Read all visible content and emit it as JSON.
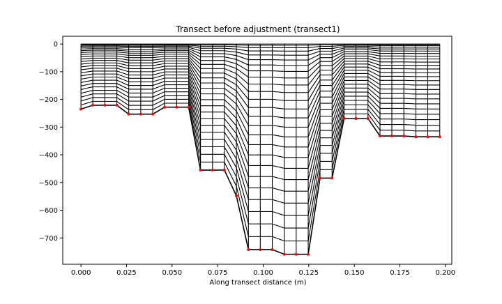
{
  "chart_data": {
    "type": "line",
    "title": "Transect before adjustment (transect1)",
    "xlabel": "Along transect distance (m)",
    "ylabel": "",
    "xlim": [
      -0.01,
      0.2035
    ],
    "ylim": [
      -795,
      28
    ],
    "xticks": [
      0.0,
      0.025,
      0.05,
      0.075,
      0.1,
      0.125,
      0.15,
      0.175,
      0.2
    ],
    "xtick_labels": [
      "0.000",
      "0.025",
      "0.050",
      "0.075",
      "0.100",
      "0.125",
      "0.150",
      "0.175",
      "0.200"
    ],
    "yticks": [
      0,
      -100,
      -200,
      -300,
      -400,
      -500,
      -600,
      -700
    ],
    "ytick_labels": [
      "0",
      "−100",
      "−200",
      "−300",
      "−400",
      "−500",
      "−600",
      "−700"
    ],
    "grid": false,
    "n_layers": 25,
    "line_color": "#000000",
    "point_color": "#ff0000",
    "bottom_points": {
      "x": [
        0.0,
        0.0065,
        0.0131,
        0.0197,
        0.0262,
        0.0328,
        0.0394,
        0.0459,
        0.0525,
        0.0591,
        0.0656,
        0.0722,
        0.0787,
        0.0853,
        0.0919,
        0.0984,
        0.105,
        0.1116,
        0.1181,
        0.1247,
        0.1312,
        0.1378,
        0.1444,
        0.1509,
        0.1575,
        0.1641,
        0.1706,
        0.1772,
        0.1838,
        0.1903,
        0.1969
      ],
      "y": [
        -235,
        -221,
        -221,
        -221,
        -253,
        -253,
        -253,
        -228,
        -228,
        -228,
        -455,
        -455,
        -455,
        -548,
        -742,
        -742,
        -742,
        -759,
        -759,
        -759,
        -484,
        -484,
        -269,
        -269,
        -269,
        -332,
        -332,
        -332,
        -335,
        -335,
        -335
      ]
    }
  }
}
